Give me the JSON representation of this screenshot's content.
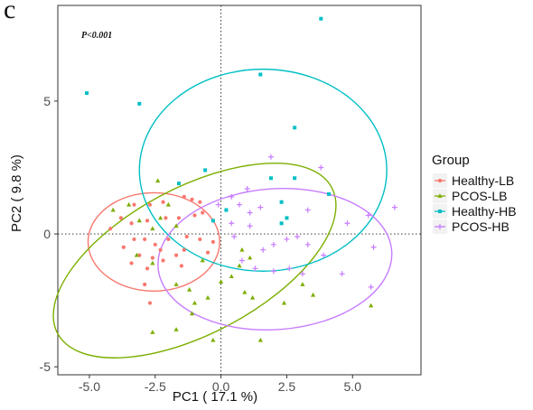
{
  "panel_letter": "c",
  "chart_data": {
    "type": "scatter",
    "annotation": "P<0.001",
    "xlabel": "PC1 ( 17.1 %)",
    "ylabel": "PC2 ( 9.8 %)",
    "xlim": [
      -6.2,
      7.6
    ],
    "ylim": [
      -5.3,
      8.6
    ],
    "xticks": [
      -5.0,
      -2.5,
      0.0,
      2.5,
      5.0
    ],
    "xtick_labels": [
      "-5.0",
      "-2.5",
      "0.0",
      "2.5",
      "5.0"
    ],
    "yticks": [
      -5,
      0,
      5
    ],
    "ytick_labels": [
      "-5",
      "0",
      "5"
    ],
    "grid": false,
    "reference_lines": {
      "x": 0,
      "y": 0,
      "style": "dotted"
    },
    "legend": {
      "title": "Group",
      "position": "right"
    },
    "series": [
      {
        "name": "Healthy-LB",
        "color": "#F8766D",
        "marker": "circle",
        "points": [
          [
            -3.3,
            1.1
          ],
          [
            -2.7,
            1.1
          ],
          [
            -2.2,
            1.2
          ],
          [
            -1.4,
            1.4
          ],
          [
            -1.1,
            1.3
          ],
          [
            -0.8,
            1.2
          ],
          [
            -3.8,
            0.6
          ],
          [
            -3.4,
            0.4
          ],
          [
            -2.8,
            0.5
          ],
          [
            -2.1,
            0.6
          ],
          [
            -1.6,
            0.6
          ],
          [
            -1.0,
            0.7
          ],
          [
            -0.7,
            0.8
          ],
          [
            -4.2,
            0.2
          ],
          [
            -3.3,
            -0.2
          ],
          [
            -2.9,
            -0.2
          ],
          [
            -2.5,
            -0.4
          ],
          [
            -2.0,
            -0.2
          ],
          [
            -1.3,
            -0.1
          ],
          [
            -0.8,
            -0.2
          ],
          [
            -0.3,
            -0.3
          ],
          [
            -3.7,
            -0.5
          ],
          [
            -3.1,
            -0.8
          ],
          [
            -2.6,
            -0.9
          ],
          [
            -2.3,
            -0.6
          ],
          [
            -1.7,
            -0.8
          ],
          [
            -1.4,
            -0.6
          ],
          [
            -0.5,
            -0.7
          ],
          [
            -3.4,
            -1.1
          ],
          [
            -2.8,
            -1.3
          ],
          [
            -2.2,
            -1.0
          ],
          [
            -1.5,
            -1.2
          ],
          [
            -2.9,
            -1.9
          ],
          [
            -2.7,
            -2.6
          ]
        ]
      },
      {
        "name": "PCOS-LB",
        "color": "#7CAE00",
        "marker": "triangle",
        "points": [
          [
            -3.1,
            0.5
          ],
          [
            -2.6,
            0.2
          ],
          [
            -2.3,
            0.6
          ],
          [
            -2.0,
            1.1
          ],
          [
            -1.7,
            0.3
          ],
          [
            -3.2,
            -0.8
          ],
          [
            -2.6,
            -1.1
          ],
          [
            -1.7,
            -1.9
          ],
          [
            -1.2,
            -2.1
          ],
          [
            -1.0,
            -2.6
          ],
          [
            -0.5,
            -2.4
          ],
          [
            0.0,
            -1.8
          ],
          [
            0.9,
            -2.2
          ],
          [
            1.2,
            -2.4
          ],
          [
            -1.1,
            -3.0
          ],
          [
            -0.3,
            -4.0
          ],
          [
            1.5,
            -4.0
          ],
          [
            -2.6,
            -3.7
          ],
          [
            -1.7,
            -3.6
          ],
          [
            0.7,
            -1.2
          ],
          [
            -0.7,
            -1.0
          ],
          [
            0.4,
            -1.6
          ],
          [
            0.8,
            -0.6
          ],
          [
            1.1,
            -0.9
          ],
          [
            2.4,
            -2.6
          ],
          [
            3.1,
            -1.9
          ],
          [
            3.5,
            -2.3
          ],
          [
            5.7,
            -2.7
          ],
          [
            -3.5,
            1.1
          ],
          [
            -4.1,
            0.9
          ],
          [
            -2.4,
            2.0
          ]
        ]
      },
      {
        "name": "Healthy-HB",
        "color": "#00BFC4",
        "marker": "square",
        "points": [
          [
            -5.1,
            5.3
          ],
          [
            -3.1,
            4.9
          ],
          [
            -1.6,
            1.9
          ],
          [
            -0.6,
            2.4
          ],
          [
            0.2,
            0.9
          ],
          [
            1.5,
            6.0
          ],
          [
            2.8,
            4.0
          ],
          [
            3.8,
            8.1
          ],
          [
            1.9,
            2.1
          ],
          [
            2.3,
            1.2
          ],
          [
            2.8,
            2.1
          ],
          [
            2.5,
            0.6
          ],
          [
            2.3,
            0.4
          ],
          [
            4.1,
            1.5
          ],
          [
            -0.3,
            0.5
          ]
        ]
      },
      {
        "name": "PCOS-HB",
        "color": "#C77CFF",
        "marker": "plus",
        "points": [
          [
            1.9,
            2.9
          ],
          [
            3.8,
            2.5
          ],
          [
            1.0,
            1.7
          ],
          [
            0.4,
            1.4
          ],
          [
            -0.1,
            1.1
          ],
          [
            0.7,
            1.1
          ],
          [
            1.5,
            1.0
          ],
          [
            0.4,
            0.4
          ],
          [
            0.5,
            -0.1
          ],
          [
            1.1,
            0.3
          ],
          [
            1.6,
            -0.6
          ],
          [
            2.0,
            -0.4
          ],
          [
            2.5,
            -0.2
          ],
          [
            2.9,
            -0.1
          ],
          [
            3.3,
            -0.4
          ],
          [
            0.8,
            -1.0
          ],
          [
            1.3,
            -1.3
          ],
          [
            2.0,
            -1.4
          ],
          [
            2.6,
            -1.3
          ],
          [
            3.1,
            -1.5
          ],
          [
            4.6,
            -1.5
          ],
          [
            5.7,
            -2.0
          ],
          [
            4.8,
            0.4
          ],
          [
            5.6,
            0.7
          ],
          [
            6.6,
            1.0
          ],
          [
            3.3,
            0.9
          ],
          [
            5.8,
            -0.5
          ],
          [
            3.9,
            -0.8
          ],
          [
            1.1,
            0.8
          ]
        ]
      }
    ],
    "ellipses": [
      {
        "series": "Healthy-LB",
        "color": "#F8766D",
        "cx": -2.55,
        "cy": -0.3,
        "rx": 2.5,
        "ry": 1.85
      },
      {
        "series": "PCOS-LB",
        "color": "#7CAE00",
        "cx": -1.0,
        "cy": -1.0,
        "rx": 5.9,
        "ry": 2.75,
        "angle_deg": 28
      },
      {
        "series": "Healthy-HB",
        "color": "#00BFC4",
        "cx": 1.6,
        "cy": 2.4,
        "rx": 4.7,
        "ry": 3.8
      },
      {
        "series": "PCOS-HB",
        "color": "#C77CFF",
        "cx": 2.05,
        "cy": -0.95,
        "rx": 4.45,
        "ry": 2.65,
        "angle_deg": 4
      }
    ]
  }
}
